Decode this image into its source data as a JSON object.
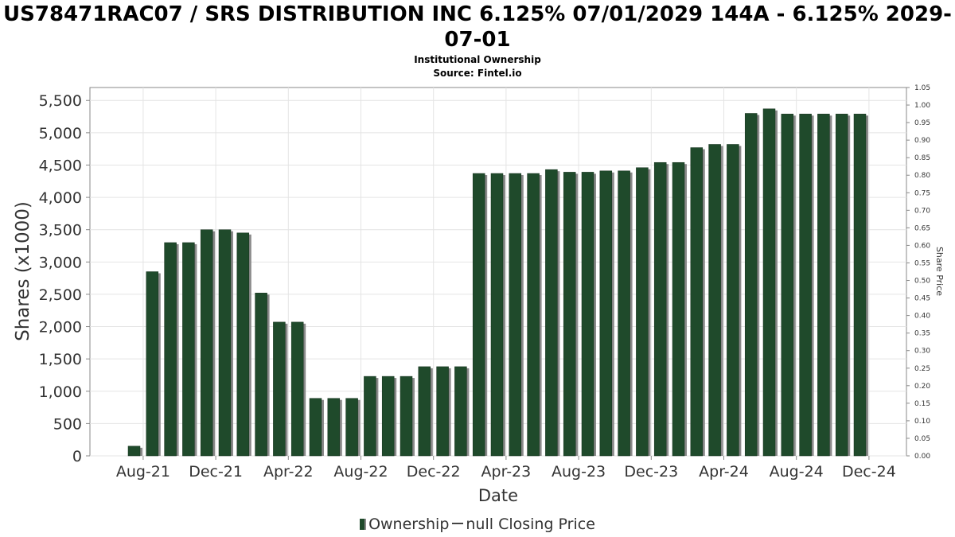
{
  "chart_data": {
    "type": "bar",
    "title": "US78471RAC07 / SRS DISTRIBUTION INC 6.125% 07/01/2029 144A - 6.125% 2029-07-01",
    "subtitle_lines": [
      "Institutional Ownership",
      "Source: Fintel.io"
    ],
    "xlabel": "Date",
    "ylabel": "Shares (x1000)",
    "y2label": "Share Price",
    "ylim": [
      0,
      5700
    ],
    "y_ticks": [
      "0",
      "500",
      "1,000",
      "1,500",
      "2,000",
      "2,500",
      "3,000",
      "3,500",
      "4,000",
      "4,500",
      "5,000",
      "5,500"
    ],
    "y2lim": [
      0,
      1.05
    ],
    "y2_ticks": [
      "0.00",
      "0.05",
      "0.10",
      "0.15",
      "0.20",
      "0.25",
      "0.30",
      "0.35",
      "0.40",
      "0.45",
      "0.50",
      "0.55",
      "0.60",
      "0.65",
      "0.70",
      "0.75",
      "0.80",
      "0.85",
      "0.90",
      "0.95",
      "1.00",
      "1.05"
    ],
    "x_ticks": [
      "Aug-21",
      "Dec-21",
      "Apr-22",
      "Aug-22",
      "Dec-22",
      "Apr-23",
      "Aug-23",
      "Dec-23",
      "Apr-24",
      "Aug-24",
      "Dec-24"
    ],
    "bar_color": "#1f4a2b",
    "grid": true,
    "legend_position": "bottom",
    "series": [
      {
        "name": "Ownership",
        "values": [
          150,
          2850,
          3300,
          3300,
          3500,
          3500,
          3450,
          2520,
          2070,
          2070,
          890,
          890,
          890,
          1230,
          1230,
          1230,
          1380,
          1380,
          1380,
          4370,
          4370,
          4370,
          4370,
          4430,
          4390,
          4390,
          4410,
          4410,
          4460,
          4540,
          4540,
          4770,
          4820,
          4820,
          5300,
          5370,
          5290,
          5290,
          5290,
          5290,
          5290
        ]
      }
    ],
    "legend": [
      {
        "label": "Ownership",
        "kind": "bar"
      },
      {
        "label": "null Closing Price",
        "kind": "line"
      }
    ]
  }
}
